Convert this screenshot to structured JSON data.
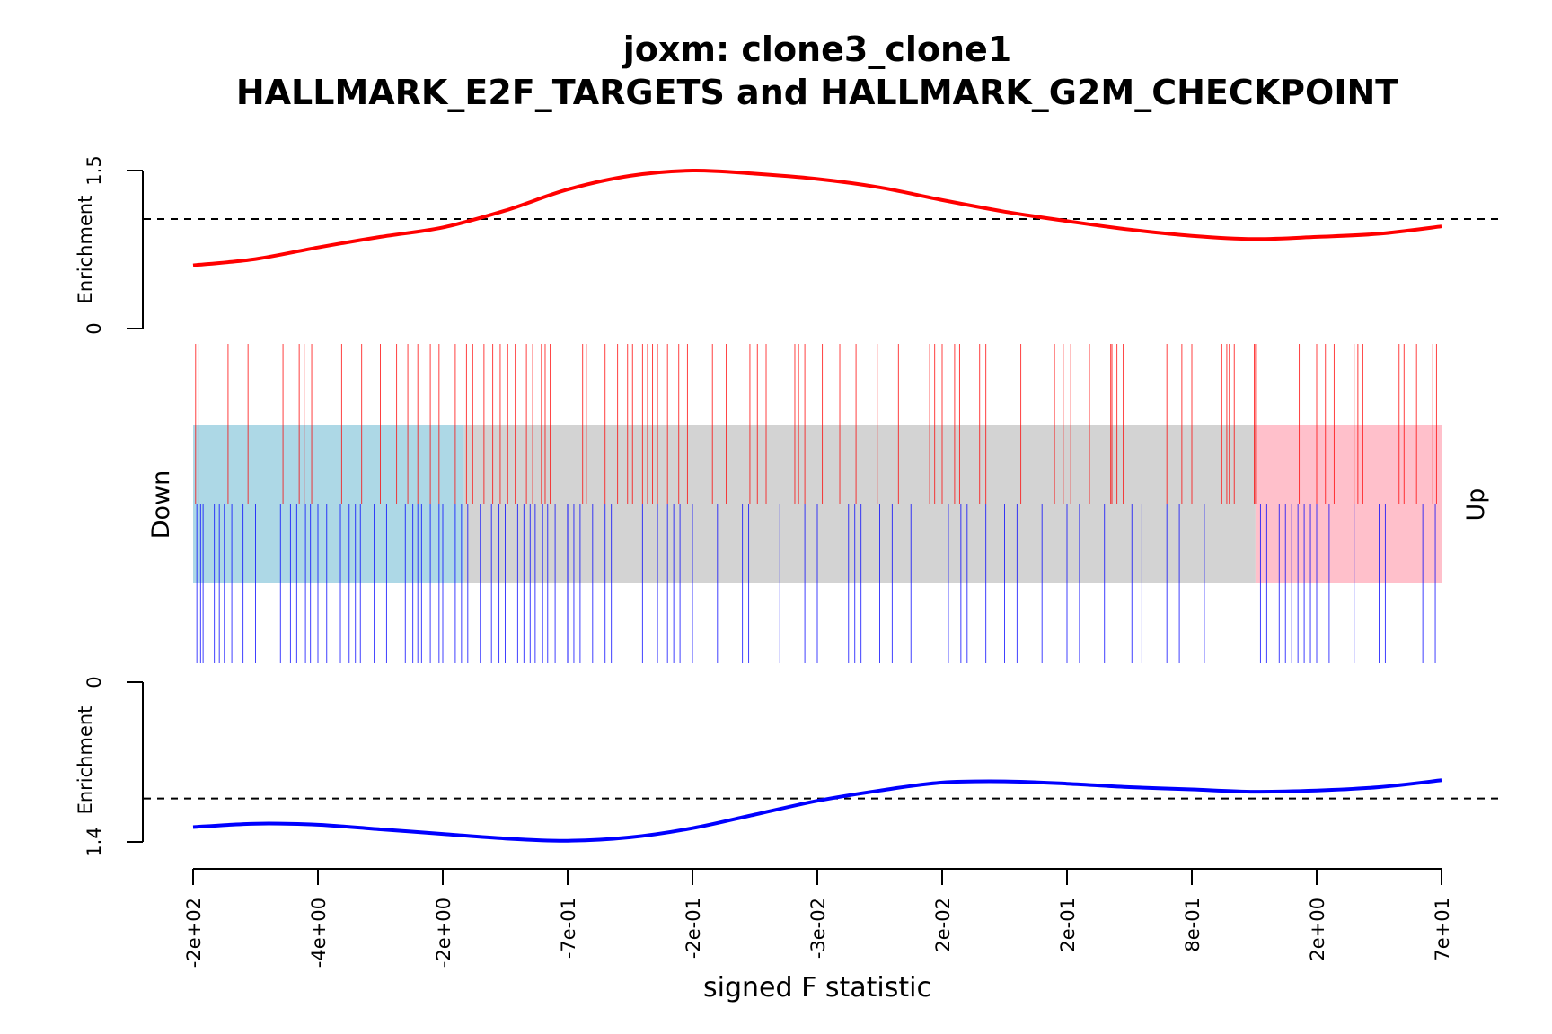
{
  "chart_data": {
    "type": "barcode-enrichment",
    "title": "joxm: clone3_clone1",
    "subtitle": "HALLMARK_E2F_TARGETS and HALLMARK_G2M_CHECKPOINT",
    "xlabel": "signed F statistic",
    "x_ticks": [
      "-2e+02",
      "-4e+00",
      "-2e+00",
      "-7e-01",
      "-2e-01",
      "-3e-02",
      "2e-02",
      "2e-01",
      "8e-01",
      "2e+00",
      "7e+01"
    ],
    "down_label": "Down",
    "up_label": "Up",
    "down_region_end": 0.217,
    "up_region_start": 0.851,
    "colors": {
      "down_region": "#add8e6",
      "middle_region": "#d3d3d3",
      "up_region": "#ffc0cb",
      "set1": "#ff0000",
      "set2": "#0000ff"
    },
    "sets": [
      {
        "name": "HALLMARK_E2F_TARGETS",
        "panel": "top",
        "ylabel": "Enrichment",
        "y_ticks": [
          "0",
          "1.5"
        ],
        "ylim": [
          0,
          1.5
        ],
        "expected": 1.04,
        "curve_x": [
          0,
          0.05,
          0.1,
          0.15,
          0.2,
          0.25,
          0.3,
          0.35,
          0.4,
          0.45,
          0.5,
          0.55,
          0.6,
          0.65,
          0.7,
          0.75,
          0.8,
          0.85,
          0.9,
          0.95,
          1
        ],
        "curve_y": [
          0.6,
          0.66,
          0.77,
          0.87,
          0.96,
          1.12,
          1.32,
          1.45,
          1.5,
          1.47,
          1.42,
          1.34,
          1.22,
          1.11,
          1.02,
          0.94,
          0.88,
          0.85,
          0.87,
          0.9,
          0.97
        ],
        "positions": [
          0.002,
          0.004,
          0.028,
          0.044,
          0.072,
          0.085,
          0.089,
          0.095,
          0.119,
          0.135,
          0.15,
          0.163,
          0.172,
          0.18,
          0.19,
          0.197,
          0.21,
          0.219,
          0.224,
          0.233,
          0.24,
          0.246,
          0.252,
          0.258,
          0.267,
          0.272,
          0.279,
          0.282,
          0.286,
          0.312,
          0.315,
          0.33,
          0.34,
          0.348,
          0.352,
          0.36,
          0.364,
          0.368,
          0.372,
          0.38,
          0.389,
          0.396,
          0.416,
          0.427,
          0.446,
          0.452,
          0.459,
          0.482,
          0.485,
          0.49,
          0.504,
          0.518,
          0.531,
          0.548,
          0.565,
          0.59,
          0.594,
          0.6,
          0.61,
          0.614,
          0.63,
          0.635,
          0.663,
          0.69,
          0.697,
          0.703,
          0.718,
          0.735,
          0.736,
          0.74,
          0.745,
          0.78,
          0.792,
          0.8,
          0.824,
          0.828,
          0.83,
          0.834,
          0.85,
          0.851,
          0.886,
          0.9,
          0.907,
          0.914,
          0.93,
          0.933,
          0.937,
          0.966,
          0.97,
          0.98,
          0.993,
          0.996
        ]
      },
      {
        "name": "HALLMARK_G2M_CHECKPOINT",
        "panel": "bottom",
        "ylabel": "Enrichment",
        "y_ticks": [
          "0",
          "1.4"
        ],
        "ylim": [
          0,
          1.4
        ],
        "expected": 1.02,
        "curve_x": [
          0,
          0.05,
          0.1,
          0.15,
          0.2,
          0.25,
          0.3,
          0.35,
          0.4,
          0.45,
          0.5,
          0.55,
          0.6,
          0.65,
          0.7,
          0.75,
          0.8,
          0.85,
          0.9,
          0.95,
          1
        ],
        "curve_y": [
          1.27,
          1.24,
          1.25,
          1.29,
          1.33,
          1.37,
          1.39,
          1.36,
          1.28,
          1.16,
          1.04,
          0.95,
          0.88,
          0.87,
          0.89,
          0.92,
          0.94,
          0.96,
          0.95,
          0.92,
          0.86
        ],
        "positions": [
          0.003,
          0.006,
          0.008,
          0.017,
          0.021,
          0.025,
          0.031,
          0.04,
          0.05,
          0.07,
          0.078,
          0.083,
          0.09,
          0.094,
          0.1,
          0.107,
          0.118,
          0.125,
          0.13,
          0.134,
          0.145,
          0.155,
          0.17,
          0.176,
          0.18,
          0.183,
          0.19,
          0.197,
          0.2,
          0.21,
          0.215,
          0.22,
          0.23,
          0.239,
          0.245,
          0.25,
          0.26,
          0.265,
          0.27,
          0.274,
          0.28,
          0.284,
          0.29,
          0.3,
          0.305,
          0.31,
          0.3,
          0.32,
          0.33,
          0.335,
          0.36,
          0.372,
          0.38,
          0.385,
          0.39,
          0.4,
          0.42,
          0.44,
          0.445,
          0.47,
          0.49,
          0.5,
          0.525,
          0.53,
          0.535,
          0.55,
          0.56,
          0.575,
          0.605,
          0.615,
          0.62,
          0.635,
          0.65,
          0.66,
          0.68,
          0.7,
          0.71,
          0.73,
          0.752,
          0.76,
          0.78,
          0.79,
          0.81,
          0.855,
          0.86,
          0.87,
          0.875,
          0.88,
          0.885,
          0.89,
          0.895,
          0.9,
          0.91,
          0.93,
          0.95,
          0.955,
          0.985,
          0.995
        ]
      }
    ]
  }
}
